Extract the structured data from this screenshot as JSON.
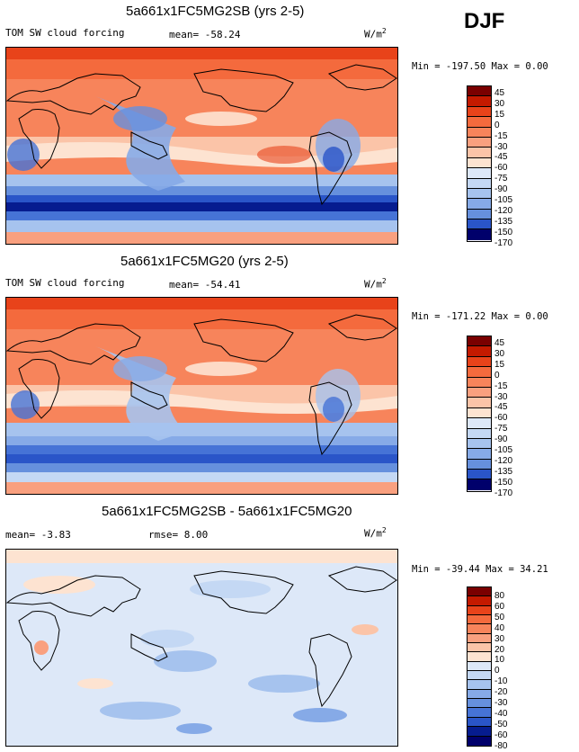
{
  "season": "DJF",
  "colors": {
    "warm": [
      "#7a0000",
      "#c41a00",
      "#e8431a",
      "#f46a3d",
      "#f7845b",
      "#f9a07f",
      "#fbc4a8",
      "#fde3d1"
    ],
    "cool": [
      "#dde8f8",
      "#c4d8f4",
      "#a6c3ee",
      "#86aae7",
      "#6690dd",
      "#4673d6",
      "#2a55c8",
      "#1238b3",
      "#061c8f",
      "#00006b"
    ],
    "diff": [
      "#7a0000",
      "#c41a00",
      "#e8431a",
      "#f46a3d",
      "#f7845b",
      "#f9a07f",
      "#fbc4a8",
      "#fde3d1",
      "#dde8f8",
      "#c4d8f4",
      "#a6c3ee",
      "#86aae7",
      "#6690dd",
      "#4673d6",
      "#2a55c8",
      "#061c8f",
      "#00006b"
    ]
  },
  "panels": [
    {
      "title": "5a661x1FC5MG2SB (yrs 2-5)",
      "field": "TOM SW cloud forcing",
      "stat1": "mean= -58.24",
      "stat2": "",
      "units": "W/m",
      "units_exp": "2",
      "minmax": "Min = -197.50 Max =   0.00",
      "levels": [
        "45",
        "30",
        "15",
        "0",
        "-15",
        "-30",
        "-45",
        "-60",
        "-75",
        "-90",
        "-105",
        "-120",
        "-135",
        "-150",
        "-170"
      ]
    },
    {
      "title": "5a661x1FC5MG20 (yrs 2-5)",
      "field": "TOM SW cloud forcing",
      "stat1": "mean= -54.41",
      "stat2": "",
      "units": "W/m",
      "units_exp": "2",
      "minmax": "Min = -171.22 Max =   0.00",
      "levels": [
        "45",
        "30",
        "15",
        "0",
        "-15",
        "-30",
        "-45",
        "-60",
        "-75",
        "-90",
        "-105",
        "-120",
        "-135",
        "-150",
        "-170"
      ]
    },
    {
      "title": "5a661x1FC5MG2SB - 5a661x1FC5MG20",
      "field": "",
      "stat1": "mean=  -3.83",
      "stat2": "rmse=   8.00",
      "units": "W/m",
      "units_exp": "2",
      "minmax": "Min = -39.44 Max =  34.21",
      "levels": [
        "80",
        "60",
        "50",
        "40",
        "30",
        "20",
        "10",
        "0",
        "-10",
        "-20",
        "-30",
        "-40",
        "-50",
        "-60",
        "-80"
      ]
    }
  ],
  "chart_data": [
    {
      "type": "heatmap",
      "title": "5a661x1FC5MG2SB (yrs 2-5)",
      "variable": "TOM SW cloud forcing",
      "units": "W/m2",
      "mean": -58.24,
      "min": -197.5,
      "max": 0.0,
      "contour_levels": [
        45,
        30,
        15,
        0,
        -15,
        -30,
        -45,
        -60,
        -75,
        -90,
        -105,
        -120,
        -135,
        -150,
        -170
      ]
    },
    {
      "type": "heatmap",
      "title": "5a661x1FC5MG20 (yrs 2-5)",
      "variable": "TOM SW cloud forcing",
      "units": "W/m2",
      "mean": -54.41,
      "min": -171.22,
      "max": 0.0,
      "contour_levels": [
        45,
        30,
        15,
        0,
        -15,
        -30,
        -45,
        -60,
        -75,
        -90,
        -105,
        -120,
        -135,
        -150,
        -170
      ]
    },
    {
      "type": "heatmap",
      "title": "5a661x1FC5MG2SB - 5a661x1FC5MG20",
      "units": "W/m2",
      "mean": -3.83,
      "rmse": 8.0,
      "min": -39.44,
      "max": 34.21,
      "contour_levels": [
        80,
        60,
        50,
        40,
        30,
        20,
        10,
        0,
        -10,
        -20,
        -30,
        -40,
        -50,
        -60,
        -80
      ]
    }
  ]
}
